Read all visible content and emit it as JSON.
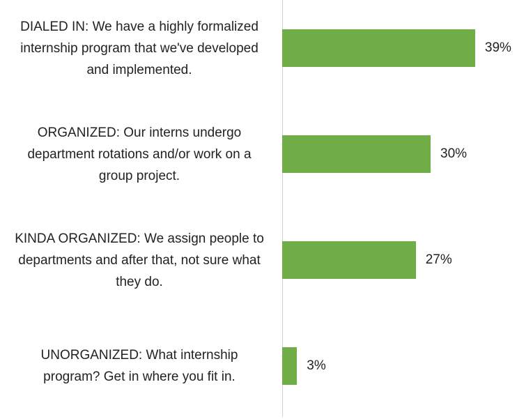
{
  "chart_data": {
    "type": "bar",
    "orientation": "horizontal",
    "categories": [
      "DIALED IN: We have a highly formalized internship program that we've developed and implemented.",
      "ORGANIZED: Our interns undergo department rotations and/or work on a group project.",
      "KINDA ORGANIZED: We assign people to departments and after that, not sure what they do.",
      "UNORGANIZED: What internship program? Get in where you fit in."
    ],
    "values": [
      39,
      30,
      27,
      3
    ],
    "value_labels": [
      "39%",
      "30%",
      "27%",
      "3%"
    ],
    "color": "#70ad47",
    "xlim": [
      0,
      40
    ]
  }
}
